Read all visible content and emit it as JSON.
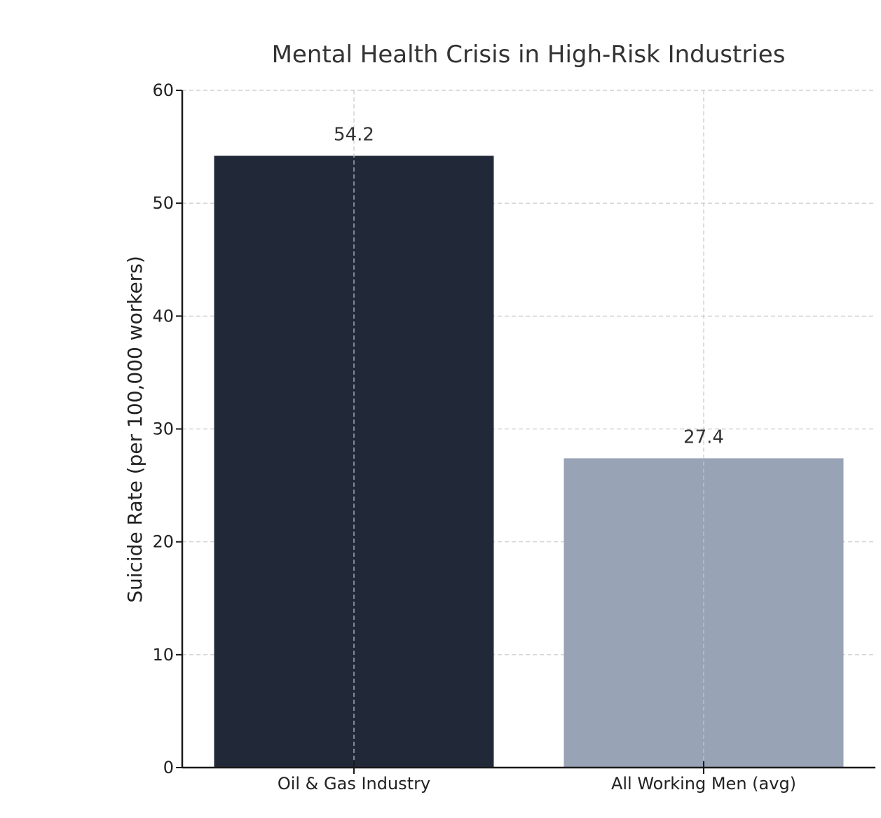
{
  "chart_data": {
    "type": "bar",
    "title": "Mental Health Crisis in High-Risk Industries",
    "xlabel": "",
    "ylabel": "Suicide Rate (per 100,000 workers)",
    "categories": [
      "Oil & Gas Industry",
      "All Working Men (avg)"
    ],
    "values": [
      54.2,
      27.4
    ],
    "value_labels": [
      "54.2",
      "27.4"
    ],
    "colors": [
      "#212939",
      "#98a3b6"
    ],
    "ylim": [
      0,
      60
    ],
    "yticks": [
      0,
      10,
      20,
      30,
      40,
      50,
      60
    ],
    "grid": true,
    "legend": "none"
  }
}
